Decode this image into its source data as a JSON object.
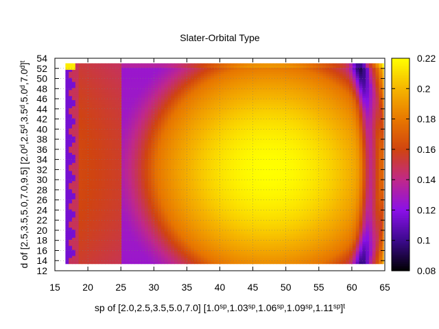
{
  "chart_data": {
    "type": "heatmap",
    "title": "Slater-Orbital Type",
    "xlabel": {
      "parts": [
        {
          "t": "sp of [2.0,2.5,3.5,5.0,7.0] [1.0",
          "sup": false
        },
        {
          "t": "sp",
          "sup": true
        },
        {
          "t": ",1.03",
          "sup": false
        },
        {
          "t": "sp",
          "sup": true
        },
        {
          "t": ",1.06",
          "sup": false
        },
        {
          "t": "sp",
          "sup": true
        },
        {
          "t": ",1.09",
          "sup": false
        },
        {
          "t": "sp",
          "sup": true
        },
        {
          "t": ",1.11",
          "sup": false
        },
        {
          "t": "sp",
          "sup": true
        },
        {
          "t": "]",
          "sup": false
        },
        {
          "t": "t",
          "sup": true
        }
      ]
    },
    "ylabel": {
      "parts": [
        {
          "t": "d of [2.5,3.5,5.0,7.0,9.5] [2.0",
          "sup": false
        },
        {
          "t": "d",
          "sup": true
        },
        {
          "t": ",2.5",
          "sup": false
        },
        {
          "t": "d",
          "sup": true
        },
        {
          "t": ",3.5",
          "sup": false
        },
        {
          "t": "d",
          "sup": true
        },
        {
          "t": ",5.0",
          "sup": false
        },
        {
          "t": "d",
          "sup": true
        },
        {
          "t": ",7.0",
          "sup": false
        },
        {
          "t": "d",
          "sup": true
        },
        {
          "t": "]",
          "sup": false
        },
        {
          "t": "t",
          "sup": true
        }
      ]
    },
    "xlim": [
      15,
      65
    ],
    "ylim": [
      12,
      54
    ],
    "xticks": [
      "15",
      "20",
      "25",
      "30",
      "35",
      "40",
      "45",
      "50",
      "55",
      "60",
      "65"
    ],
    "yticks": [
      "12",
      "14",
      "16",
      "18",
      "20",
      "22",
      "24",
      "26",
      "28",
      "30",
      "32",
      "34",
      "36",
      "38",
      "40",
      "42",
      "44",
      "46",
      "48",
      "50",
      "52",
      "54"
    ],
    "grid": true,
    "data_extent": {
      "x": [
        16.6,
        64.8
      ],
      "y": [
        13.4,
        53.0
      ]
    },
    "colorbar": {
      "range": [
        0.08,
        0.22
      ],
      "ticks": [
        "0.08",
        "0.1",
        "0.12",
        "0.14",
        "0.16",
        "0.18",
        "0.2",
        "0.22"
      ],
      "palette": [
        "#000000",
        "#3b0a8c",
        "#8a10e8",
        "#c0288a",
        "#d04410",
        "#e87800",
        "#f5b400",
        "#ffff00"
      ]
    },
    "surface": {
      "peak": {
        "x": 47.5,
        "y": 32,
        "value": 0.22
      },
      "left_ridge": {
        "x_range": [
          18.5,
          25
        ],
        "value": 0.162
      },
      "left_edge_strip": {
        "x_range": [
          16.6,
          18.5
        ],
        "value": 0.115
      },
      "right_trough": {
        "x": 62.8,
        "value": 0.09
      },
      "corner_top_left": {
        "value": 0.215
      }
    }
  }
}
